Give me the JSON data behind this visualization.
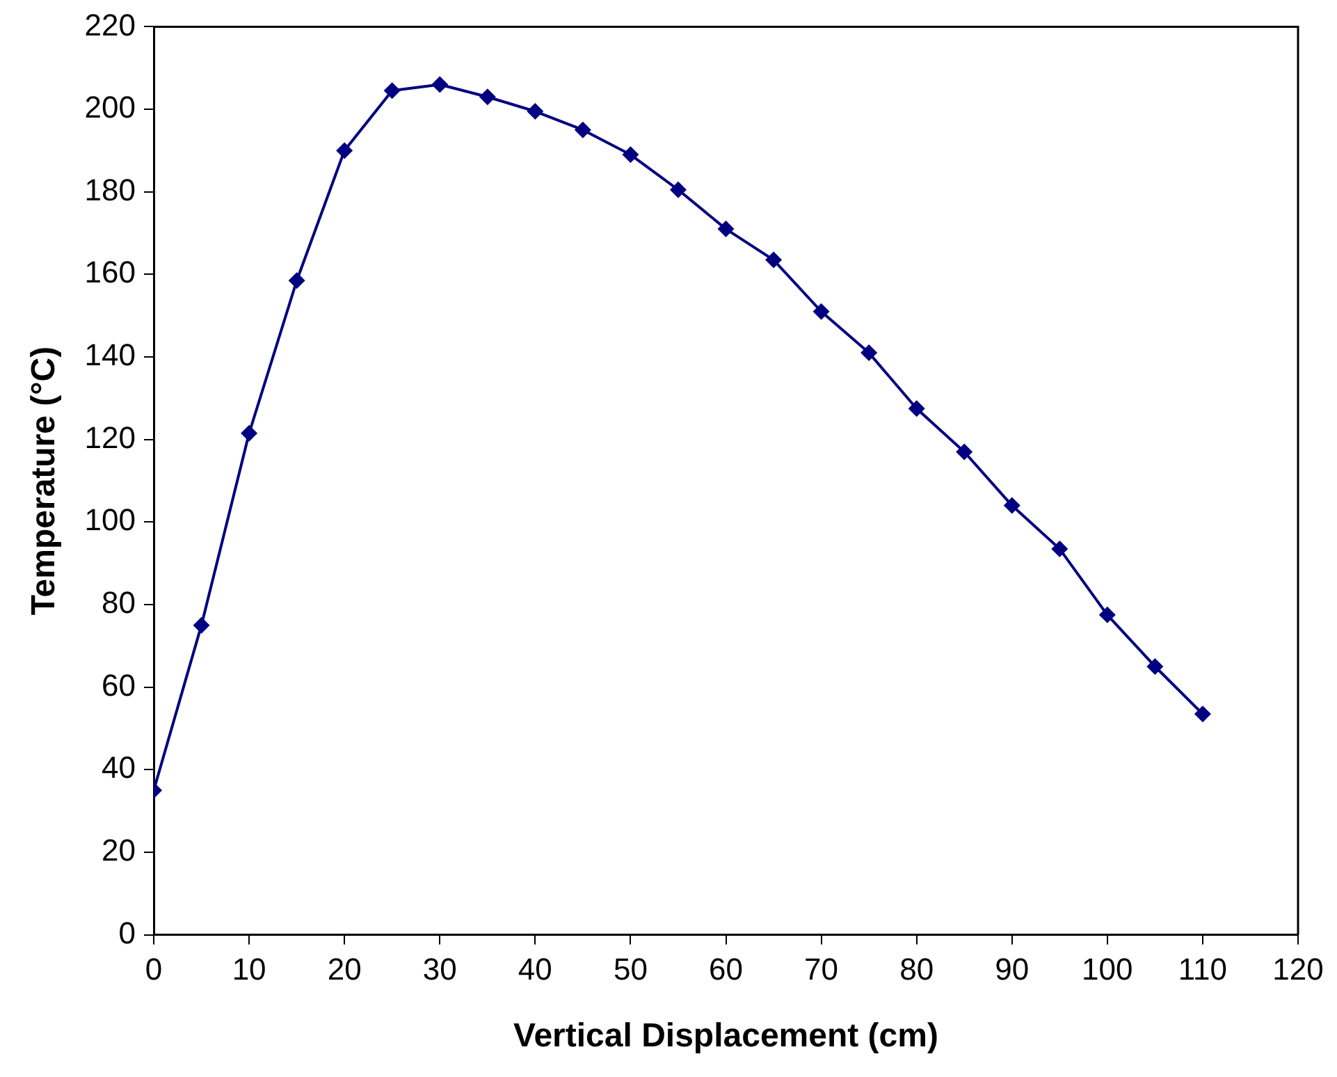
{
  "chart_data": {
    "type": "line",
    "xlabel": "Vertical Displacement (cm)",
    "ylabel": "Temperature (°C)",
    "x": [
      0,
      5,
      10,
      15,
      20,
      25,
      30,
      35,
      40,
      45,
      50,
      55,
      60,
      65,
      70,
      75,
      80,
      85,
      90,
      95,
      100,
      105,
      110
    ],
    "series": [
      {
        "color": "#000080",
        "values": [
          35,
          75,
          121.5,
          158.5,
          190,
          204.5,
          206,
          203,
          199.5,
          195,
          189,
          180.5,
          171,
          163.5,
          151,
          141,
          127.5,
          117,
          104,
          93.5,
          77.5,
          65,
          53.5
        ]
      }
    ],
    "xlim": [
      0,
      120
    ],
    "xticks": [
      0,
      10,
      20,
      30,
      40,
      50,
      60,
      70,
      80,
      90,
      100,
      110,
      120
    ],
    "ylim": [
      0,
      220
    ],
    "yticks": [
      0,
      20,
      40,
      60,
      80,
      100,
      120,
      140,
      160,
      180,
      200,
      220
    ],
    "grid": false,
    "legend": false,
    "marker": "diamond",
    "line_style": "solid"
  }
}
